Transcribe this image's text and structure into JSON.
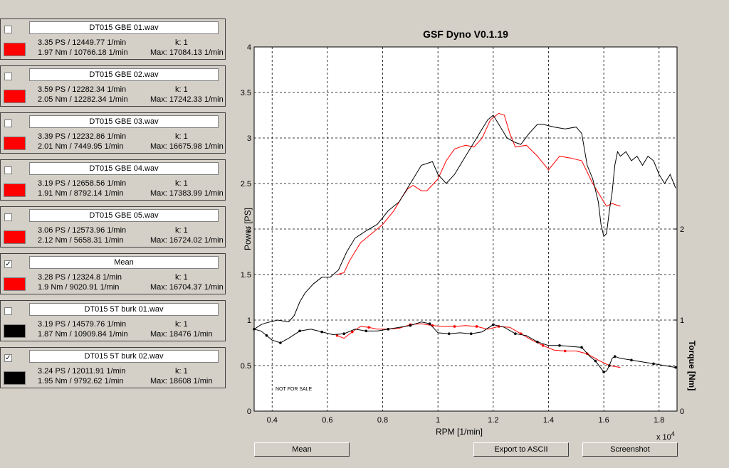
{
  "app_title": "GSF Dyno V0.1.19",
  "files": [
    {
      "name": "DT015 GBE 01.wav",
      "checked": false,
      "color": "#ff0000",
      "power": "3.35 PS / 12449.77 1/min",
      "k": "k: 1",
      "torque": "1.97 Nm / 10766.18 1/min",
      "max": "Max: 17084.13 1/min"
    },
    {
      "name": "DT015 GBE 02.wav",
      "checked": false,
      "color": "#ff0000",
      "power": "3.59 PS / 12282.34 1/min",
      "k": "k: 1",
      "torque": "2.05 Nm / 12282.34 1/min",
      "max": "Max: 17242.33 1/min"
    },
    {
      "name": "DT015 GBE 03.wav",
      "checked": false,
      "color": "#ff0000",
      "power": "3.39 PS / 12232.86 1/min",
      "k": "k: 1",
      "torque": "2.01 Nm / 7449.95 1/min",
      "max": "Max: 16675.98 1/min"
    },
    {
      "name": "DT015 GBE 04.wav",
      "checked": false,
      "color": "#ff0000",
      "power": "3.19 PS / 12658.56 1/min",
      "k": "k: 1",
      "torque": "1.91 Nm / 8792.14 1/min",
      "max": "Max: 17383.99 1/min"
    },
    {
      "name": "DT015 GBE 05.wav",
      "checked": false,
      "color": "#ff0000",
      "power": "3.06 PS / 12573.96 1/min",
      "k": "k: 1",
      "torque": "2.12 Nm / 5658.31 1/min",
      "max": "Max: 16724.02 1/min"
    },
    {
      "name": "Mean",
      "checked": true,
      "color": "#ff0000",
      "power": "3.28 PS / 12324.8 1/min",
      "k": "k: 1",
      "torque": "1.9 Nm / 9020.91 1/min",
      "max": "Max: 16704.37 1/min"
    },
    {
      "name": "DT015 5T burk 01.wav",
      "checked": false,
      "color": "#000000",
      "power": "3.19 PS / 14579.76 1/min",
      "k": "k: 1",
      "torque": "1.87 Nm / 10909.84 1/min",
      "max": "Max: 18476 1/min"
    },
    {
      "name": "DT015 5T burk 02.wav",
      "checked": true,
      "color": "#000000",
      "power": "3.24 PS / 12011.91 1/min",
      "k": "k: 1",
      "torque": "1.95 Nm / 9792.62 1/min",
      "max": "Max: 18608 1/min"
    }
  ],
  "check_mark": "✓",
  "buttons": {
    "mean": "Mean",
    "export": "Export to ASCII",
    "screenshot": "Screenshot"
  },
  "watermark": "NOT FOR SALE",
  "chart_data": {
    "type": "line",
    "title": "GSF Dyno V0.1.19",
    "xlabel": "RPM [1/min]",
    "x_exponent_label": "x 10",
    "x_exponent_power": "4",
    "ylabel": "Power [PS]",
    "y2label": "Torque [Nm]",
    "xlim": [
      0.335,
      1.865
    ],
    "ylim": [
      0,
      4
    ],
    "y2lim": [
      0,
      4
    ],
    "x_ticks": [
      "0.4",
      "0.6",
      "0.8",
      "1",
      "1.2",
      "1.4",
      "1.6",
      "1.8"
    ],
    "y_ticks": [
      "0",
      "0.5",
      "1",
      "1.5",
      "2",
      "2.5",
      "3",
      "3.5",
      "4"
    ],
    "y2_ticks": [
      "0",
      "1",
      "2"
    ],
    "grid": true,
    "series": [
      {
        "color": "#ff0000",
        "kind": "power",
        "x": [
          0.635,
          0.66,
          0.68,
          0.72,
          0.76,
          0.8,
          0.84,
          0.87,
          0.89,
          0.91,
          0.94,
          0.96,
          1.0,
          1.03,
          1.06,
          1.1,
          1.13,
          1.16,
          1.19,
          1.22,
          1.24,
          1.26,
          1.28,
          1.32,
          1.36,
          1.4,
          1.44,
          1.48,
          1.52,
          1.56,
          1.59,
          1.61,
          1.63,
          1.66
        ],
        "y": [
          1.5,
          1.52,
          1.65,
          1.85,
          1.95,
          2.05,
          2.2,
          2.35,
          2.44,
          2.48,
          2.42,
          2.42,
          2.55,
          2.75,
          2.88,
          2.92,
          2.9,
          3.0,
          3.2,
          3.27,
          3.25,
          3.05,
          2.9,
          2.92,
          2.8,
          2.65,
          2.8,
          2.78,
          2.75,
          2.5,
          2.35,
          2.25,
          2.28,
          2.25
        ]
      },
      {
        "color": "#ff0000",
        "kind": "torque",
        "x": [
          0.635,
          0.66,
          0.69,
          0.72,
          0.75,
          0.78,
          0.82,
          0.86,
          0.9,
          0.94,
          0.98,
          1.02,
          1.06,
          1.1,
          1.14,
          1.18,
          1.22,
          1.26,
          1.3,
          1.34,
          1.38,
          1.42,
          1.46,
          1.5,
          1.54,
          1.58,
          1.62,
          1.66
        ],
        "y": [
          0.83,
          0.8,
          0.87,
          0.93,
          0.92,
          0.9,
          0.9,
          0.91,
          0.95,
          0.96,
          0.94,
          0.93,
          0.93,
          0.94,
          0.93,
          0.9,
          0.93,
          0.92,
          0.85,
          0.78,
          0.72,
          0.67,
          0.66,
          0.66,
          0.63,
          0.56,
          0.5,
          0.48
        ]
      },
      {
        "color": "#000000",
        "kind": "power",
        "x": [
          0.335,
          0.36,
          0.38,
          0.42,
          0.46,
          0.48,
          0.5,
          0.52,
          0.55,
          0.58,
          0.61,
          0.64,
          0.67,
          0.7,
          0.74,
          0.78,
          0.82,
          0.86,
          0.9,
          0.94,
          0.98,
          1.0,
          1.03,
          1.06,
          1.09,
          1.12,
          1.15,
          1.18,
          1.2,
          1.22,
          1.25,
          1.28,
          1.3,
          1.33,
          1.36,
          1.38,
          1.42,
          1.46,
          1.5,
          1.52,
          1.54,
          1.56,
          1.58,
          1.59,
          1.6,
          1.61,
          1.62,
          1.63,
          1.64,
          1.65,
          1.66,
          1.68,
          1.7,
          1.72,
          1.74,
          1.76,
          1.78,
          1.8,
          1.82,
          1.84,
          1.86
        ],
        "y": [
          0.9,
          0.95,
          0.97,
          1.0,
          0.98,
          1.05,
          1.2,
          1.3,
          1.4,
          1.47,
          1.47,
          1.55,
          1.75,
          1.9,
          1.98,
          2.05,
          2.2,
          2.3,
          2.5,
          2.7,
          2.74,
          2.6,
          2.5,
          2.6,
          2.75,
          2.9,
          3.05,
          3.2,
          3.25,
          3.15,
          3.0,
          2.95,
          2.93,
          3.05,
          3.15,
          3.15,
          3.12,
          3.1,
          3.12,
          3.05,
          2.7,
          2.55,
          2.3,
          2.05,
          1.92,
          1.95,
          2.2,
          2.4,
          2.7,
          2.85,
          2.8,
          2.85,
          2.75,
          2.8,
          2.7,
          2.8,
          2.75,
          2.6,
          2.5,
          2.6,
          2.45
        ]
      },
      {
        "color": "#000000",
        "kind": "torque",
        "x": [
          0.335,
          0.36,
          0.38,
          0.4,
          0.43,
          0.46,
          0.5,
          0.54,
          0.58,
          0.62,
          0.66,
          0.7,
          0.74,
          0.78,
          0.82,
          0.86,
          0.9,
          0.94,
          0.97,
          1.0,
          1.04,
          1.08,
          1.12,
          1.16,
          1.2,
          1.24,
          1.28,
          1.32,
          1.36,
          1.4,
          1.44,
          1.48,
          1.52,
          1.55,
          1.57,
          1.59,
          1.6,
          1.61,
          1.62,
          1.63,
          1.64,
          1.66,
          1.7,
          1.74,
          1.78,
          1.82,
          1.86
        ],
        "y": [
          0.9,
          0.88,
          0.83,
          0.78,
          0.75,
          0.8,
          0.88,
          0.9,
          0.87,
          0.84,
          0.85,
          0.9,
          0.88,
          0.88,
          0.9,
          0.92,
          0.94,
          0.98,
          0.96,
          0.86,
          0.85,
          0.86,
          0.85,
          0.87,
          0.95,
          0.92,
          0.85,
          0.83,
          0.76,
          0.72,
          0.72,
          0.71,
          0.7,
          0.6,
          0.55,
          0.47,
          0.43,
          0.44,
          0.5,
          0.58,
          0.6,
          0.58,
          0.56,
          0.54,
          0.52,
          0.5,
          0.48
        ]
      }
    ]
  }
}
